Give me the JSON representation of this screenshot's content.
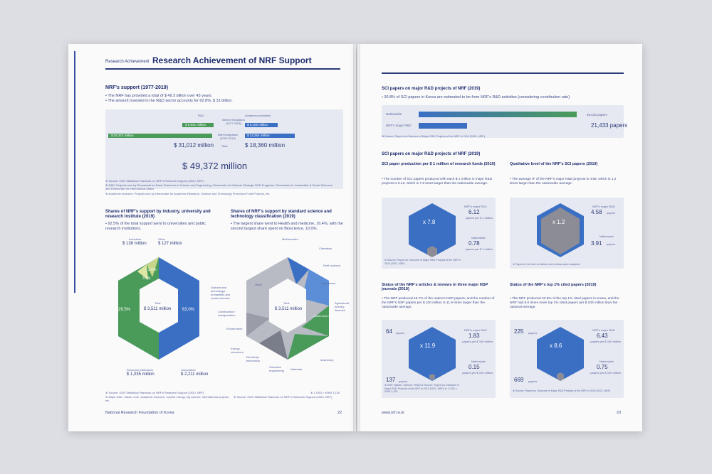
{
  "left": {
    "kicker": "Research Achievement",
    "title": "Research Achievement of NRF Support",
    "sec1": "NRF's support (1977-2019)",
    "bullet1": "• The NRF has provided a total of $ 49.3 billion over 43 years.",
    "bullet2": "• The amount invested in the R&D sector accounts for 62.8%, $ 31 billion.",
    "rd_label": "R&D",
    "ap_label": "Academic promotion",
    "before_label": "Before integration (1977-2008)",
    "after_label": "After integration (2009-2019)",
    "total_label": "Total",
    "rd_before": "$ 5,641 million",
    "rd_after": "$ 25,371 million",
    "ap_before": "$ 6,106 million",
    "ap_after": "$ 12,254 million",
    "rd_total": "$ 31,012 million",
    "ap_total": "$ 18,360 million",
    "grand_total": "$ 49,372 million",
    "src1": "※ Source: 2020 Statistical Yearbook on NRF's Research Support (2020, NRF)",
    "src2": "※ R&D: Projects won by Directorate for Basic Research in Science and Engineering, Directorate for National Strategic R&D Programs, Directorate for Humanities & Social Sciences and Directorate for International Affairs",
    "src3": "※ Academic research: Projects won by Directorate for Academic Research, Science and Technology Promotion Fund Projects, etc.",
    "sec2": "Shares of NRF's support by industry, university and research institute (2019)",
    "sec2_b": "• 92.5% of the total support went to universities and public research institutions.",
    "sec3": "Shares of NRF's support by standard science and technology classification (2019)",
    "sec3_b": "• The largest share went to Health and medicine, 16.4%, with the second largest share spent on Bioscience, 10.0%.",
    "hex1": {
      "industries": "Industries",
      "industries_v": "$ 138 million",
      "other": "Other",
      "other_v": "$ 127 million",
      "p1": "3.6%",
      "p2": "3.9%",
      "p3": "29.5%",
      "p4": "63.0%",
      "total": "Total",
      "total_v": "$ 3,511 million",
      "ri": "Research institutions",
      "ri_v": "$ 1,035 million",
      "uni": "Universities",
      "uni_v": "$ 2,211 million"
    },
    "hex2": {
      "total": "Total",
      "total_v": "$ 3,511 million",
      "math": "Mathematics",
      "chem": "Chemistry",
      "earth": "Earth science",
      "bio": "Bioscience",
      "agri": "Agricultural, forestry, fisheries",
      "health": "Health and medicine",
      "mach": "Machinery",
      "mat": "Materials",
      "chemeng": "Chemical engineering",
      "elec": "Electricity/ electronics",
      "energy": "Energy resources",
      "env": "Environment",
      "constr": "Construction/ transportation",
      "other": "Other",
      "social": "Science and technology/ humanities and social sciences"
    },
    "src4": "※ Source: 2020 Statistical Yearbook on NRF's Research Support (2020, NRF)",
    "src5": "※ Major R&D : Basic, core, academic research, nuclear energy, big science, international projects, etc.",
    "fx": "※ 1 USD = KRW 1,100",
    "src6": "※ Source: 2020 Statistical Yearbook on NRF's Research Support (2020, NRF)",
    "footer": "National Research Foundation of Korea",
    "page_no": "22"
  },
  "right": {
    "sec1": "SCI papers on major R&D projects of NRF (2019)",
    "bullet1": "• 30.8% of SCI papers in Korea are estimated to be from NRF's R&D activities (considering contribution rate)",
    "nationwide": "Nationwide",
    "nrf_rd": "NRF's major R&D",
    "nationwide_v": "69,618 papers",
    "nrf_v": "21,433 papers",
    "bar_nationwide": 69618,
    "bar_nrf": 21433,
    "src1": "※ Source: Report on Outcome of Major R&D Projects of the NRF in 2019 (2021, NRF)",
    "sec2": "SCI papers on major R&D projects of NRF (2019)",
    "q1_title": "SCI paper production per $ 1 million of research funds (2019)",
    "q1_text": "• The number of SCI papers produced with each $ 1 million in major R&D projects is 6.12, which is 7.8 times larger than the nationwide average.",
    "q1_mult": "x 7.8",
    "q1_nrf_l": "NRF's major R&D",
    "q1_nrf_v": "6.12",
    "q1_nrf_u": "papers per $ 1 million",
    "q1_nat_l": "Nationwide",
    "q1_nat_v": "0.78",
    "q1_nat_u": "papers per $ 1 million",
    "q1_src": "※ Source: Report on Outcome of Major R&D Projects of the NRF in 2019 (2021, NRF)",
    "q2_title": "Qualitative level of the NRF's SCI papers (2019)",
    "q2_text": "• The average IF of the NRF's major R&D projects is 4.58, which is 1.2 times larger than the nationwide average.",
    "q2_mult": "x 1.2",
    "q2_nrf_l": "NRF's major R&D",
    "q2_nrf_v": "4.58",
    "q2_nrf_u": "papers",
    "q2_nat_l": "Nationwide",
    "q2_nat_v": "3.91",
    "q2_nat_u": "papers",
    "q2_src": "※ Papers in the form of articles and reviews were analyzed",
    "q3_title": "Status of the NRF's articles & reviews in three major NSP journals (2019)",
    "q3_text": "• The NRF produced 46.7% of the nation's NSP papers, and the number of the NRF's NSP papers per $ 100 million is 11.9 times larger than the nationwide average.",
    "q3_top": "64",
    "q3_top_u": "papers",
    "q3_bot": "137",
    "q3_bot_u": "papers",
    "q3_mult": "x 11.9",
    "q3_nrf_l": "NRF's major R&D",
    "q3_nrf_v": "1.83",
    "q3_nrf_u": "papers per $ 100 million",
    "q3_nat_l": "Nationwide",
    "q3_nat_v": "0.15",
    "q3_nat_u": "papers per $ 100 million",
    "q3_src": "※ NSP: Nature, Science, PNAS  ※ Source: Report on Outcome of Major R&D Projects of the NRF in 2019 (2021, NRF)  ※ 1 USD = KRW 1,100",
    "q4_title": "Status of the NRF's top 1% cited papers (2019)",
    "q4_text": "• The NRF produced 33.6% of the top 1% cited papers in Korea, and the NRF had 8.6 times more top 1% cited papers per $ 100 million than the national average.",
    "q4_top": "225",
    "q4_top_u": "papers",
    "q4_bot": "669",
    "q4_bot_u": "papers",
    "q4_mult": "x 8.6",
    "q4_nrf_l": "NRF's major R&D",
    "q4_nrf_v": "6.43",
    "q4_nrf_u": "papers per $ 100 million",
    "q4_nat_l": "Nationwide",
    "q4_nat_v": "0.75",
    "q4_nat_u": "papers per $ 100 million",
    "q4_src": "※ Source: Report on Outcome of Major R&D Projects of the NRF in 2019 (2021, NRF)",
    "footer": "www.nrf.re.kr",
    "page_no": "23"
  },
  "colors": {
    "navy": "#2b3a78",
    "green": "#4a9b5a",
    "blue": "#3a6fc4",
    "grey": "#8c8c96"
  }
}
